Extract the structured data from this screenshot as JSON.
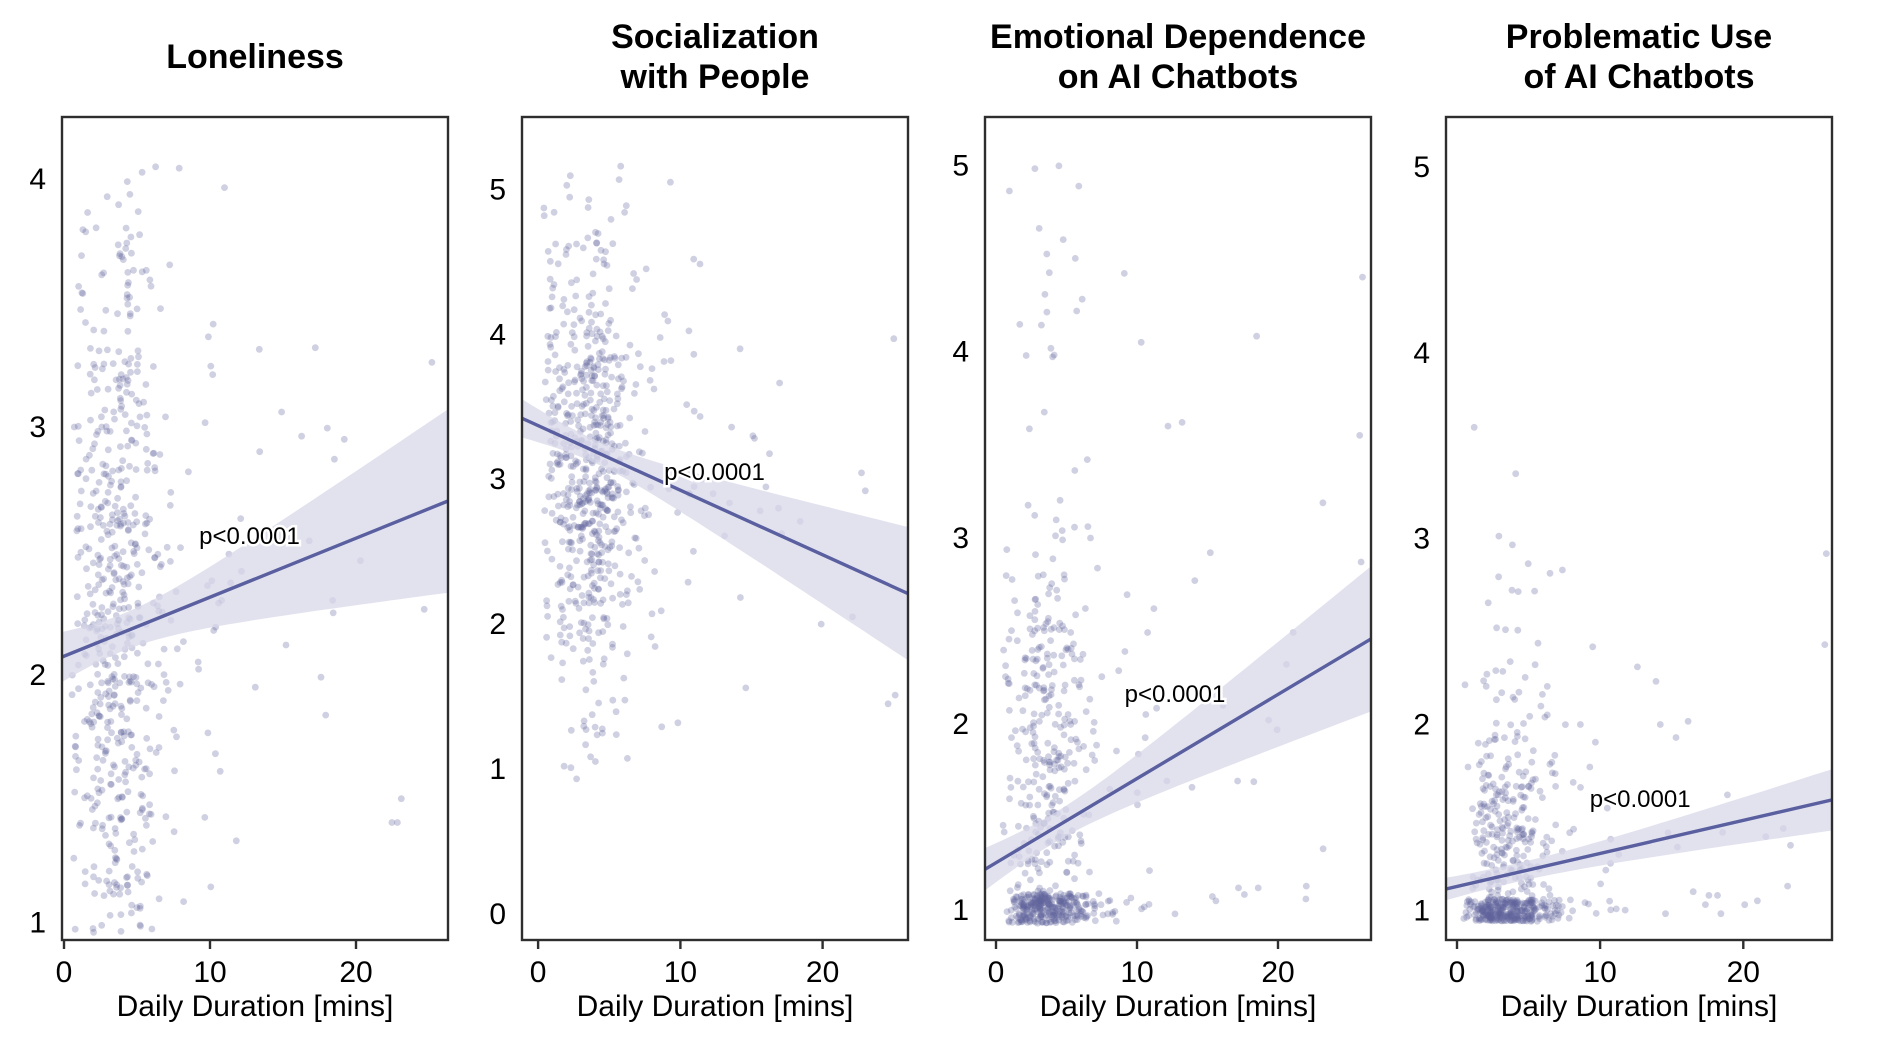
{
  "figure": {
    "background": "#ffffff",
    "colors": {
      "line": "#5a5fa0",
      "band": "#d7d7e9",
      "band_opacity": 0.72,
      "point": "rgba(95,100,155,0.30)",
      "frame": "#2e2e2e",
      "text": "#000000"
    }
  },
  "chart_data": [
    {
      "type": "scatter",
      "title": "Loneliness",
      "title_lines": [
        "Loneliness"
      ],
      "xlabel": "Daily Duration [mins]",
      "ylabel": "",
      "xlim": [
        -0.14,
        26.3
      ],
      "ylim": [
        0.93,
        4.25
      ],
      "xticks": [
        0,
        10,
        20
      ],
      "yticks": [
        1,
        2,
        3,
        4
      ],
      "grid": false,
      "annotation": {
        "text": "p<0.0001",
        "x": 12.7,
        "y": 2.56
      },
      "regression": {
        "intercept": 2.075,
        "slope": 0.0238
      },
      "band": {
        "xbar": 4,
        "w_mid": 0.075,
        "w_end": 0.37
      },
      "scatter": {
        "seed": 7,
        "n": 620,
        "x": {
          "frac_main": 0.92,
          "mean": 3.6,
          "sd": 1.7,
          "min": 0.5,
          "max": 8.4,
          "frac_mid": 0.055,
          "mid_range": [
            5.5,
            11
          ],
          "far_range": [
            9,
            25
          ]
        },
        "y": {
          "kind": "normal",
          "mean": 2.3,
          "sd": 0.82,
          "min": 0.95,
          "max": 4.06
        },
        "outliers": [
          [
            11.8,
            1.33
          ],
          [
            12.1,
            2.63
          ],
          [
            13.4,
            2.9
          ],
          [
            14.9,
            3.06
          ],
          [
            15.2,
            2.12
          ],
          [
            16.8,
            2.54
          ],
          [
            17.6,
            1.99
          ],
          [
            19.2,
            2.95
          ],
          [
            20.3,
            2.46
          ],
          [
            23.1,
            1.5
          ],
          [
            25.2,
            3.26
          ],
          [
            13.1,
            1.95
          ],
          [
            10.8,
            2.3
          ],
          [
            18.4,
            2.3
          ]
        ]
      }
    },
    {
      "type": "scatter",
      "title": "Socialization with People",
      "title_lines": [
        "Socialization",
        "with People"
      ],
      "xlabel": "Daily Duration [mins]",
      "ylabel": "",
      "xlim": [
        -1.13,
        26.0
      ],
      "ylim": [
        -0.18,
        5.5
      ],
      "xticks": [
        0,
        10,
        20
      ],
      "yticks": [
        0,
        1,
        2,
        3,
        4,
        5
      ],
      "grid": false,
      "annotation": {
        "text": "p<0.0001",
        "x": 12.4,
        "y": 3.05
      },
      "regression": {
        "intercept": 3.37,
        "slope": -0.0446
      },
      "band": {
        "xbar": 4,
        "w_mid": 0.08,
        "w_end": 0.46
      },
      "scatter": {
        "seed": 13,
        "n": 660,
        "x": {
          "frac_main": 0.92,
          "mean": 3.5,
          "sd": 1.7,
          "min": 0.4,
          "max": 8.4,
          "frac_mid": 0.055,
          "mid_range": [
            5.5,
            11
          ],
          "far_range": [
            9,
            24
          ]
        },
        "y": {
          "kind": "normal",
          "mean": 3.15,
          "sd": 0.8,
          "min": 0.93,
          "max": 5.22
        },
        "outliers": [
          [
            9.3,
            5.05
          ],
          [
            13.6,
            3.36
          ],
          [
            14.2,
            3.9
          ],
          [
            15.1,
            3.3
          ],
          [
            14.6,
            1.56
          ],
          [
            19.9,
            2.0
          ],
          [
            22.1,
            2.05
          ],
          [
            24.6,
            1.45
          ],
          [
            25.1,
            1.51
          ],
          [
            23.0,
            2.92
          ],
          [
            25.0,
            3.97
          ],
          [
            16.9,
            2.8
          ],
          [
            11.5,
            3.0
          ],
          [
            12.3,
            2.9
          ]
        ]
      }
    },
    {
      "type": "scatter",
      "title": "Emotional Dependence on AI Chatbots",
      "title_lines": [
        "Emotional Dependence",
        "on AI Chatbots"
      ],
      "xlabel": "Daily Duration [mins]",
      "ylabel": "",
      "xlim": [
        -0.78,
        26.6
      ],
      "ylim": [
        0.84,
        5.26
      ],
      "xticks": [
        0,
        10,
        20
      ],
      "yticks": [
        1,
        2,
        3,
        4,
        5
      ],
      "grid": false,
      "annotation": {
        "text": "p<0.0001",
        "x": 12.7,
        "y": 2.16
      },
      "regression": {
        "intercept": 1.255,
        "slope": 0.0452
      },
      "band": {
        "xbar": 4,
        "w_mid": 0.08,
        "w_end": 0.39
      },
      "scatter": {
        "seed": 21,
        "n": 650,
        "x": {
          "frac_main": 0.93,
          "mean": 3.6,
          "sd": 1.6,
          "min": 0.5,
          "max": 8.6,
          "frac_mid": 0.045,
          "mid_range": [
            5.5,
            11
          ],
          "far_range": [
            9,
            24
          ]
        },
        "y": {
          "kind": "mix",
          "stripe_frac": 0.48,
          "stripe_lo": 0.93,
          "stripe_hi": 1.09,
          "mid_frac": 0.48,
          "mid_mean": 1.85,
          "mid_sd": 0.6,
          "mid_min": 1.1,
          "mid_max": 3.3,
          "hi_range": [
            3.3,
            5.05
          ]
        },
        "outliers": [
          [
            25.8,
            3.55
          ],
          [
            26.0,
            4.4
          ],
          [
            25.9,
            2.87
          ],
          [
            23.2,
            1.33
          ],
          [
            20.6,
            2.32
          ],
          [
            18.6,
            1.12
          ],
          [
            17.2,
            1.12
          ],
          [
            15.2,
            2.92
          ],
          [
            14.1,
            2.77
          ],
          [
            13.2,
            3.62
          ],
          [
            12.2,
            3.6
          ],
          [
            9.1,
            4.42
          ],
          [
            10.3,
            4.05
          ],
          [
            13.9,
            1.66
          ],
          [
            15.6,
            1.05
          ],
          [
            12.7,
            0.98
          ],
          [
            16.1,
            2.1
          ],
          [
            11.2,
            2.62
          ]
        ]
      }
    },
    {
      "type": "scatter",
      "title": "Problematic Use of AI Chatbots",
      "title_lines": [
        "Problematic Use",
        "of AI Chatbots"
      ],
      "xlabel": "Daily Duration [mins]",
      "ylabel": "",
      "xlim": [
        -0.77,
        26.2
      ],
      "ylim": [
        0.84,
        5.27
      ],
      "xticks": [
        0,
        10,
        20
      ],
      "yticks": [
        1,
        2,
        3,
        4,
        5
      ],
      "grid": false,
      "annotation": {
        "text": "p<0.0001",
        "x": 12.8,
        "y": 1.6
      },
      "regression": {
        "intercept": 1.128,
        "slope": 0.0178
      },
      "band": {
        "xbar": 4,
        "w_mid": 0.05,
        "w_end": 0.165
      },
      "scatter": {
        "seed": 42,
        "n": 600,
        "x": {
          "frac_main": 0.93,
          "mean": 3.5,
          "sd": 1.6,
          "min": 0.4,
          "max": 8.4,
          "frac_mid": 0.045,
          "mid_range": [
            5.5,
            11
          ],
          "far_range": [
            9,
            22
          ]
        },
        "y": {
          "kind": "mix",
          "stripe_frac": 0.52,
          "stripe_lo": 0.94,
          "stripe_hi": 1.06,
          "mid_frac": 0.455,
          "mid_mean": 1.35,
          "mid_sd": 0.42,
          "mid_min": 1.07,
          "mid_max": 2.6,
          "hi_range": [
            2.2,
            3.1
          ]
        },
        "outliers": [
          [
            12.6,
            2.31
          ],
          [
            14.2,
            2.0
          ],
          [
            15.3,
            1.93
          ],
          [
            16.5,
            1.1
          ],
          [
            17.6,
            1.08
          ],
          [
            18.2,
            1.08
          ],
          [
            22.8,
            1.44
          ],
          [
            23.3,
            1.35
          ],
          [
            25.8,
            2.92
          ],
          [
            25.7,
            2.43
          ],
          [
            23.1,
            1.13
          ],
          [
            20.1,
            1.03
          ],
          [
            10.5,
            1.55
          ],
          [
            11.3,
            1.3
          ],
          [
            1.2,
            3.6
          ],
          [
            4.1,
            3.35
          ]
        ]
      }
    }
  ]
}
